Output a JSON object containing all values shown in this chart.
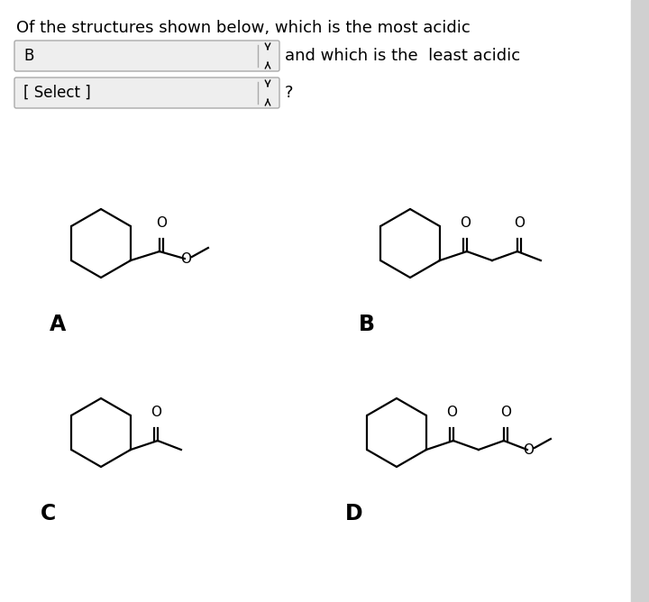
{
  "title": "Of the structures shown below, which is the most acidic",
  "dropdown1_text": "B",
  "dropdown1_suffix": "and which is the  least acidic",
  "dropdown2_text": "[ Select ]",
  "dropdown2_suffix": "?",
  "label_A": "A",
  "label_B": "B",
  "label_C": "C",
  "label_D": "D",
  "bg_color": "#ffffff",
  "text_color": "#000000",
  "dropdown_bg": "#eeeeee",
  "dropdown_border": "#aaaaaa",
  "right_bar_color": "#d0d0d0",
  "struct_lw": 1.6,
  "struct_color": "#000000",
  "O_fontsize": 11
}
